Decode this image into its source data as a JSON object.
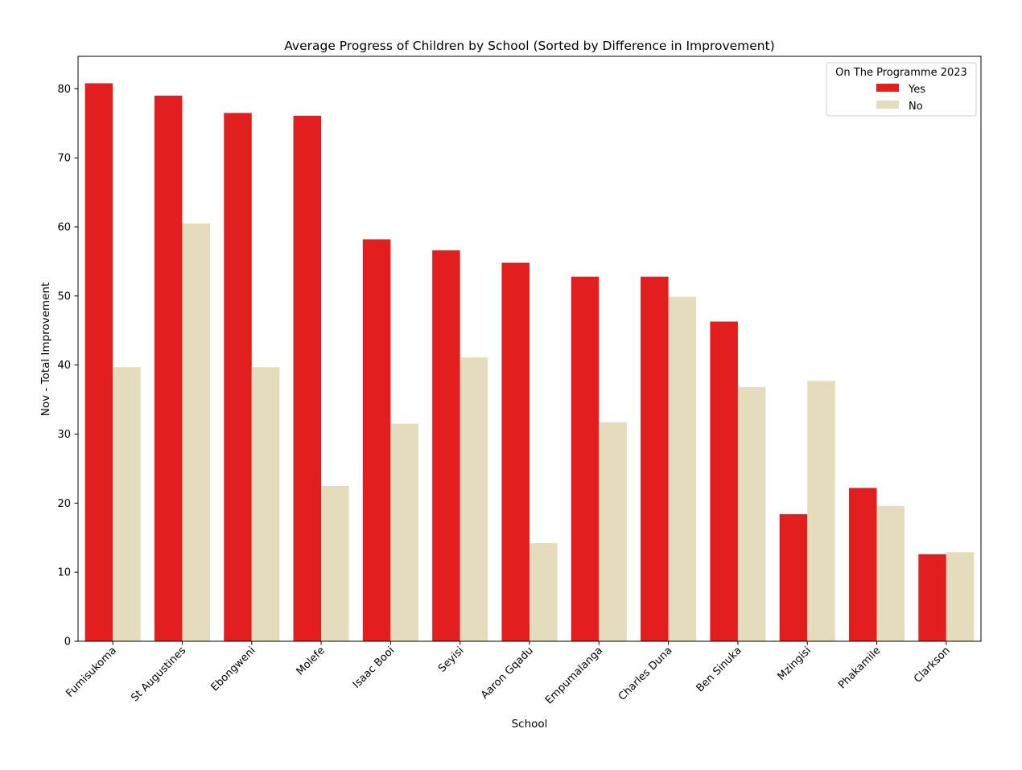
{
  "chart_data": {
    "type": "bar",
    "title": "Average Progress of Children by School (Sorted by Difference in Improvement)",
    "xlabel": "School",
    "ylabel": "Nov - Total Improvement",
    "ylim": [
      0,
      84.7
    ],
    "yticks": [
      0,
      10,
      20,
      30,
      40,
      50,
      60,
      70,
      80
    ],
    "grid": false,
    "legend": {
      "title": "On The Programme 2023",
      "position": "top-right"
    },
    "categories": [
      "Fumisukoma",
      "St Augustines",
      "Ebongweni",
      "Molefe",
      "Isaac Booi",
      "Seyisi",
      "Aaron Gqadu",
      "Empumalanga",
      "Charles Duna",
      "Ben Sinuka",
      "Mzingisi",
      "Phakamile",
      "Clarkson"
    ],
    "series": [
      {
        "name": "Yes",
        "color": "#e31e1e",
        "values": [
          80.8,
          79.0,
          76.5,
          76.1,
          58.2,
          56.6,
          54.8,
          52.8,
          52.8,
          46.3,
          18.4,
          22.2,
          12.6
        ]
      },
      {
        "name": "No",
        "color": "#e5dbbd",
        "values": [
          39.7,
          60.5,
          39.7,
          22.5,
          31.5,
          41.1,
          14.2,
          31.7,
          49.9,
          36.8,
          37.7,
          19.6,
          12.9
        ]
      }
    ]
  }
}
